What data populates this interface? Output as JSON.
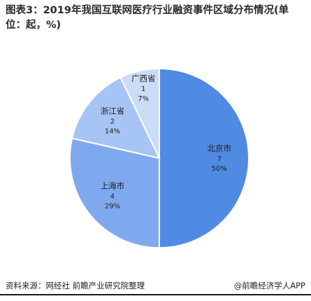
{
  "title": "图表3：2019年我国互联网医疗行业融资事件区域分布情况(单位：起，%)",
  "chart_data": {
    "type": "pie",
    "slices": [
      {
        "name": "北京市",
        "value": 7,
        "percent": "50%",
        "color": "#4f8ae3"
      },
      {
        "name": "上海市",
        "value": 4,
        "percent": "29%",
        "color": "#7fa9ee"
      },
      {
        "name": "浙江省",
        "value": 2,
        "percent": "14%",
        "color": "#a6c4f4"
      },
      {
        "name": "广西省",
        "value": 1,
        "percent": "7%",
        "color": "#cbdcf8"
      }
    ]
  },
  "footer": {
    "source": "资料来源：网经社 前瞻产业研究院整理",
    "brand": "@前瞻经济学人APP"
  }
}
